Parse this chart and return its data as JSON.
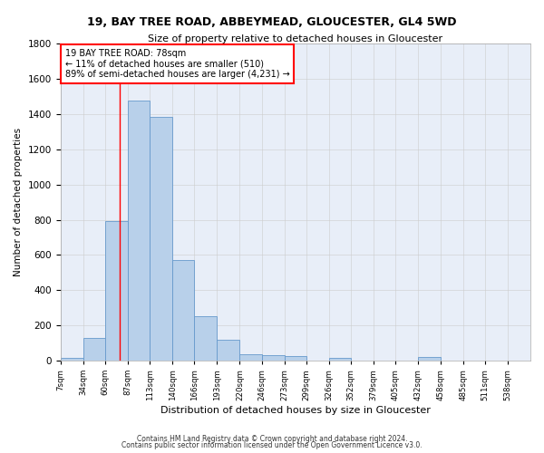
{
  "title_line1": "19, BAY TREE ROAD, ABBEYMEAD, GLOUCESTER, GL4 5WD",
  "title_line2": "Size of property relative to detached houses in Gloucester",
  "xlabel": "Distribution of detached houses by size in Gloucester",
  "ylabel": "Number of detached properties",
  "bar_color": "#b8d0ea",
  "bar_edge_color": "#6699cc",
  "grid_color": "#cccccc",
  "annotation_line1": "19 BAY TREE ROAD: 78sqm",
  "annotation_line2": "← 11% of detached houses are smaller (510)",
  "annotation_line3": "89% of semi-detached houses are larger (4,231) →",
  "red_line_x": 78,
  "footnote1": "Contains HM Land Registry data © Crown copyright and database right 2024.",
  "footnote2": "Contains public sector information licensed under the Open Government Licence v3.0.",
  "bins": [
    7,
    34,
    60,
    87,
    113,
    140,
    166,
    193,
    220,
    246,
    273,
    299,
    326,
    352,
    379,
    405,
    432,
    458,
    485,
    511,
    538
  ],
  "counts": [
    15,
    130,
    795,
    1475,
    1385,
    570,
    250,
    120,
    35,
    30,
    28,
    0,
    18,
    0,
    0,
    0,
    20,
    0,
    0,
    0,
    0
  ],
  "tick_labels": [
    "7sqm",
    "34sqm",
    "60sqm",
    "87sqm",
    "113sqm",
    "140sqm",
    "166sqm",
    "193sqm",
    "220sqm",
    "246sqm",
    "273sqm",
    "299sqm",
    "326sqm",
    "352sqm",
    "379sqm",
    "405sqm",
    "432sqm",
    "458sqm",
    "485sqm",
    "511sqm",
    "538sqm"
  ],
  "ylim": [
    0,
    1800
  ],
  "yticks": [
    0,
    200,
    400,
    600,
    800,
    1000,
    1200,
    1400,
    1600,
    1800
  ],
  "background_color": "#e8eef8",
  "fig_background": "#ffffff"
}
